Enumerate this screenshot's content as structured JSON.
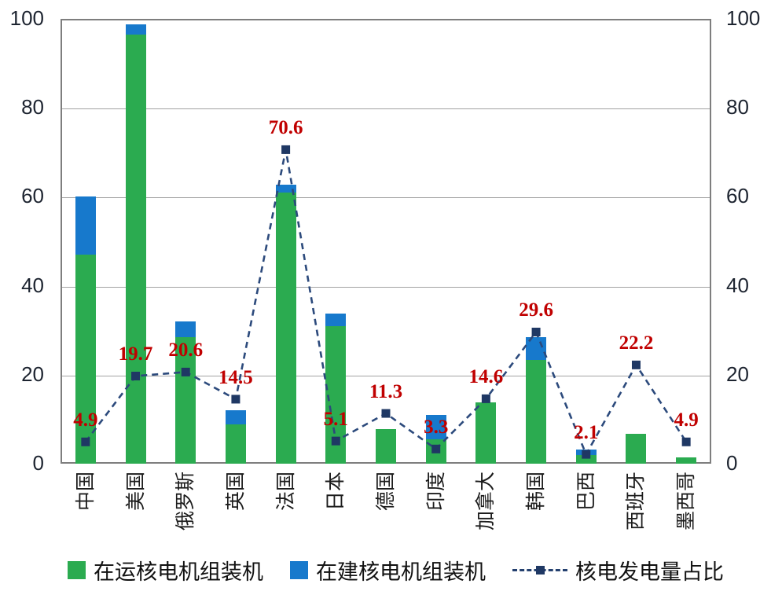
{
  "chart_data": {
    "type": "bar",
    "subtype": "stacked-bars-with-secondary-line",
    "categories": [
      "中国",
      "美国",
      "俄罗斯",
      "英国",
      "法国",
      "日本",
      "德国",
      "印度",
      "加拿大",
      "韩国",
      "巴西",
      "西班牙",
      "墨西哥"
    ],
    "series": [
      {
        "name": "在运核电机组装机",
        "type": "bar",
        "color": "#2bab50",
        "values": [
          47,
          96.5,
          28.5,
          8.9,
          61,
          31,
          7.8,
          5.5,
          13.8,
          23.3,
          1.9,
          6.8,
          1.5
        ]
      },
      {
        "name": "在建核电机组装机",
        "type": "bar",
        "color": "#1779cc",
        "values": [
          13,
          2.2,
          3.5,
          3.2,
          1.8,
          2.8,
          0,
          5.4,
          0,
          5.2,
          1.3,
          0,
          0
        ]
      },
      {
        "name": "核电发电量占比",
        "type": "line",
        "color": "#2c4a7c",
        "marker_color": "#1f3864",
        "values": [
          4.9,
          19.7,
          20.6,
          14.5,
          70.6,
          5.1,
          11.3,
          3.3,
          14.6,
          29.6,
          2.1,
          22.2,
          4.9
        ]
      }
    ],
    "value_labels": [
      "4.9",
      "19.7",
      "20.6",
      "14.5",
      "70.6",
      "5.1",
      "11.3",
      "3.3",
      "14.6",
      "29.6",
      "2.1",
      "22.2",
      "4.9"
    ],
    "value_label_color": "#c00000",
    "title": "",
    "xlabel": "",
    "ylabel": "",
    "ylim": [
      0,
      100
    ],
    "yticks_left": [
      0,
      20,
      40,
      60,
      80,
      100
    ],
    "yticks_right": [
      0,
      20,
      40,
      60,
      80,
      100
    ],
    "grid": "horizontal",
    "gridline_color": "#a2a2a2",
    "legend_position": "bottom"
  }
}
